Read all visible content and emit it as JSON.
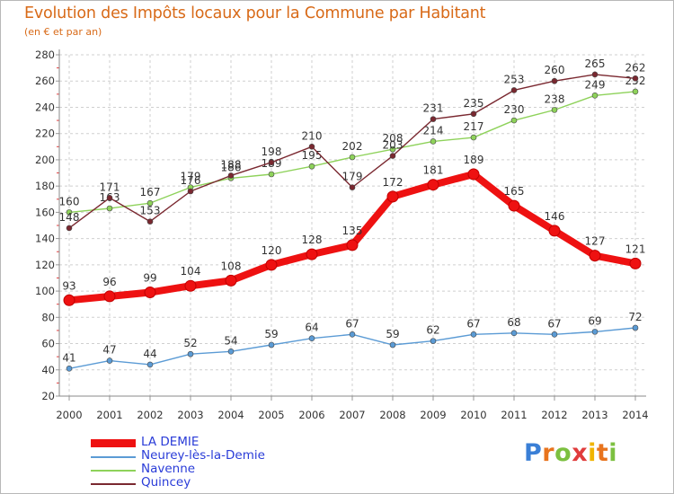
{
  "title": "Evolution des Impôts locaux pour la Commune par Habitant",
  "subtitle": "(en € et par an)",
  "brand": {
    "name": "Proxiti",
    "letters": [
      "P",
      "r",
      "o",
      "x",
      "i",
      "t",
      "i"
    ]
  },
  "chart_data": {
    "type": "line",
    "title": "Evolution des Impôts locaux pour la Commune par Habitant",
    "subtitle": "(en € et par an)",
    "xlabel": "",
    "ylabel": "",
    "ylim": [
      20,
      280
    ],
    "yticks": [
      20,
      40,
      60,
      80,
      100,
      120,
      140,
      160,
      180,
      200,
      220,
      240,
      260,
      280
    ],
    "grid": true,
    "legend_position": "bottom-left",
    "categories": [
      "2000",
      "2001",
      "2002",
      "2003",
      "2004",
      "2005",
      "2006",
      "2007",
      "2008",
      "2009",
      "2010",
      "2011",
      "2012",
      "2013",
      "2014"
    ],
    "series": [
      {
        "name": "LA DEMIE",
        "color": "#ee1111",
        "highlight": true,
        "values": [
          93,
          96,
          99,
          104,
          108,
          120,
          128,
          135,
          172,
          181,
          189,
          165,
          146,
          127,
          121
        ]
      },
      {
        "name": "Neurey-lès-la-Demie",
        "color": "#5b9bd5",
        "values": [
          41,
          47,
          44,
          52,
          54,
          59,
          64,
          67,
          59,
          62,
          67,
          68,
          67,
          69,
          72
        ]
      },
      {
        "name": "Navenne",
        "color": "#8ed25a",
        "values": [
          160,
          163,
          167,
          179,
          186,
          189,
          195,
          202,
          208,
          214,
          217,
          230,
          238,
          249,
          252
        ]
      },
      {
        "name": "Quincey",
        "color": "#7a2830",
        "values": [
          148,
          171,
          153,
          176,
          188,
          198,
          210,
          179,
          203,
          231,
          235,
          253,
          260,
          265,
          262
        ]
      }
    ]
  }
}
